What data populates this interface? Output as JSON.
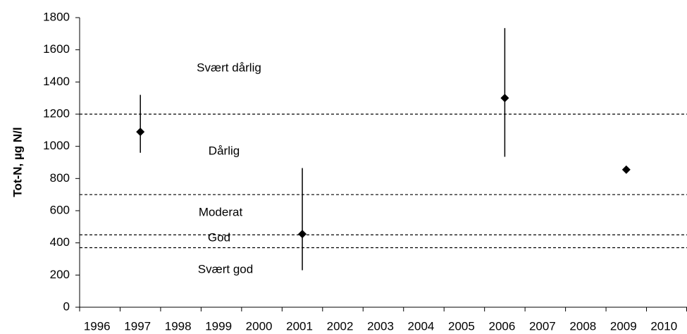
{
  "chart_data": {
    "type": "errorbar",
    "y_label": "Tot-N, µg N/l",
    "categories": [
      "1996",
      "1997",
      "1998",
      "1999",
      "2000",
      "2001",
      "2002",
      "2003",
      "2004",
      "2005",
      "2006",
      "2007",
      "2008",
      "2009",
      "2010"
    ],
    "series": [
      {
        "color": "#000000",
        "values": [
          null,
          1090,
          null,
          null,
          null,
          455,
          null,
          null,
          null,
          null,
          1300,
          null,
          null,
          855,
          null
        ],
        "min": [
          null,
          960,
          null,
          null,
          null,
          230,
          null,
          null,
          null,
          null,
          935,
          null,
          null,
          null,
          null
        ],
        "max": [
          null,
          1320,
          null,
          null,
          null,
          865,
          null,
          null,
          null,
          null,
          1735,
          null,
          null,
          null,
          null
        ]
      }
    ],
    "ylim": [
      0,
      1800
    ],
    "yticks": [
      0,
      200,
      400,
      600,
      800,
      1000,
      1200,
      1400,
      1600,
      1800
    ],
    "hlines": [
      1200,
      700,
      450,
      370
    ],
    "annotations": [
      "Svært dårlig",
      "Dårlig",
      "Moderat",
      "God",
      "Svært god"
    ]
  }
}
